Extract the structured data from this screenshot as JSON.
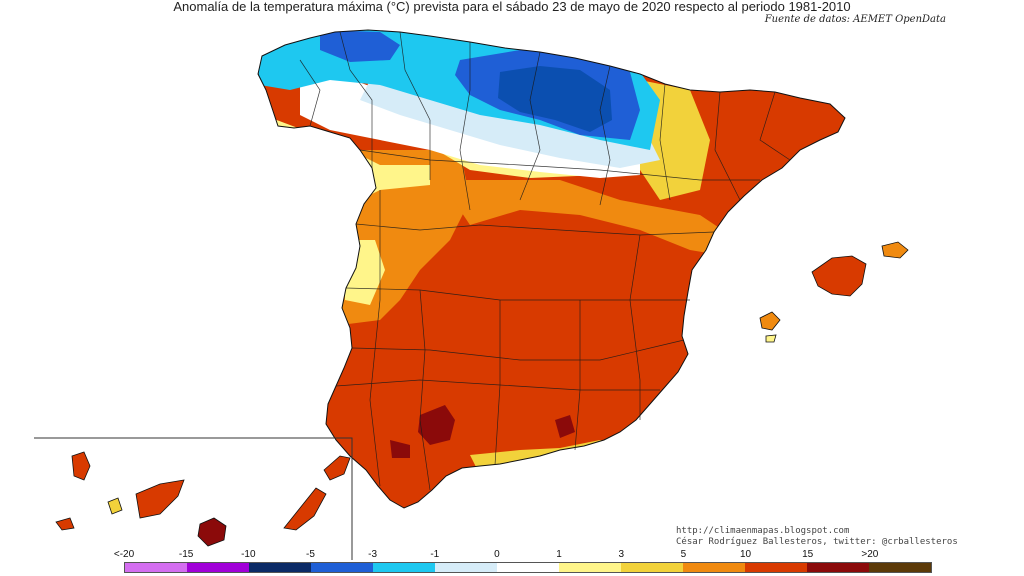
{
  "title": "Anomalía de la temperatura máxima (°C) prevista para el sábado 23 de mayo de 2020 respecto al periodo 1981-2010",
  "source": "Fuente de datos: AEMET OpenData",
  "credits": {
    "url": "http://climaenmapas.blogspot.com",
    "author": "César Rodríguez Ballesteros, twitter: @crballesteros"
  },
  "legend": {
    "ticks": [
      "<-20",
      "-15",
      "-10",
      "-5",
      "-3",
      "-1",
      "0",
      "1",
      "3",
      "5",
      "10",
      "15",
      ">20"
    ],
    "colors": [
      "#d46ef0",
      "#a100d8",
      "#0b2a66",
      "#1f5fd6",
      "#1ec8f0",
      "#d6ecf8",
      "#ffffff",
      "#fff58a",
      "#f2d23b",
      "#f08a10",
      "#d83a00",
      "#8b0a0a",
      "#5c3a08"
    ]
  }
}
